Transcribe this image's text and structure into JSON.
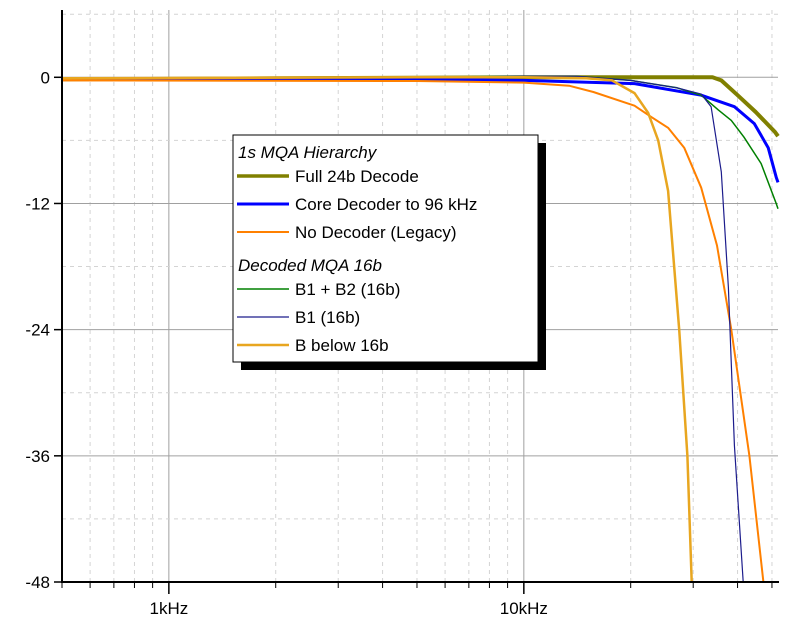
{
  "chart_data": {
    "type": "line",
    "title": "",
    "xlabel": "",
    "ylabel": "",
    "x_scale": "log",
    "xlim": [
      500,
      52000
    ],
    "ylim": [
      -48,
      6.4
    ],
    "grid": true,
    "legend_position": "center",
    "x_tick_labels": [
      {
        "value": 1000,
        "label": "1kHz"
      },
      {
        "value": 10000,
        "label": "10kHz"
      }
    ],
    "y_ticks": [
      0,
      -12,
      -24,
      -36,
      -48
    ],
    "y_tick_labels": [
      "0",
      "-12",
      "-24",
      "-36",
      "-48"
    ],
    "legend": {
      "groups": [
        {
          "heading": "1s MQA Hierarchy",
          "entries": [
            0,
            1,
            2
          ]
        },
        {
          "heading": "Decoded MQA 16b",
          "entries": [
            3,
            4,
            5
          ]
        }
      ]
    },
    "series": [
      {
        "name": "Full 24b Decode",
        "color": "#808000",
        "width": 4,
        "points": [
          [
            500,
            -0.2
          ],
          [
            2000,
            -0.1
          ],
          [
            10000,
            0
          ],
          [
            20000,
            0
          ],
          [
            34000,
            0
          ],
          [
            36000,
            -0.3
          ],
          [
            40000,
            -1.7
          ],
          [
            45000,
            -3.3
          ],
          [
            51000,
            -5.2
          ],
          [
            52000,
            -5.6
          ]
        ]
      },
      {
        "name": "Core Decoder to 96 kHz",
        "color": "#0000ff",
        "width": 3,
        "points": [
          [
            500,
            -0.2
          ],
          [
            5000,
            -0.2
          ],
          [
            10000,
            -0.3
          ],
          [
            20500,
            -0.6
          ],
          [
            31600,
            -1.7
          ],
          [
            39200,
            -2.8
          ],
          [
            44600,
            -4.4
          ],
          [
            48800,
            -6.7
          ],
          [
            51400,
            -9.5
          ],
          [
            52000,
            -10
          ]
        ]
      },
      {
        "name": "No Decoder (Legacy)",
        "color": "#ff8000",
        "width": 2,
        "points": [
          [
            500,
            -0.3
          ],
          [
            5000,
            -0.35
          ],
          [
            10000,
            -0.5
          ],
          [
            13400,
            -0.8
          ],
          [
            15700,
            -1.4
          ],
          [
            20500,
            -2.7
          ],
          [
            22900,
            -3.8
          ],
          [
            25500,
            -4.8
          ],
          [
            28300,
            -6.7
          ],
          [
            31600,
            -10.5
          ],
          [
            35000,
            -16
          ],
          [
            38400,
            -24
          ],
          [
            43200,
            -36
          ],
          [
            47300,
            -48
          ]
        ]
      },
      {
        "name": "B1 + B2 (16b)",
        "color": "#008000",
        "width": 1.5,
        "points": [
          [
            500,
            -0.1
          ],
          [
            5000,
            0
          ],
          [
            10000,
            0.1
          ],
          [
            14000,
            0.1
          ],
          [
            20000,
            -0.3
          ],
          [
            27000,
            -1
          ],
          [
            31600,
            -1.7
          ],
          [
            35300,
            -3.1
          ],
          [
            38400,
            -4.1
          ],
          [
            41700,
            -5.7
          ],
          [
            46600,
            -8.2
          ],
          [
            51400,
            -12
          ],
          [
            52000,
            -12.5
          ]
        ]
      },
      {
        "name": "B1 (16b)",
        "color": "#1c1c8c",
        "width": 1.2,
        "points": [
          [
            500,
            -0.1
          ],
          [
            5000,
            0
          ],
          [
            10000,
            0.1
          ],
          [
            14000,
            0.1
          ],
          [
            20000,
            -0.3
          ],
          [
            27000,
            -1
          ],
          [
            31600,
            -1.6
          ],
          [
            33700,
            -2.8
          ],
          [
            36000,
            -9
          ],
          [
            37700,
            -20
          ],
          [
            39200,
            -35
          ],
          [
            41500,
            -48
          ]
        ]
      },
      {
        "name": "B below 16b",
        "color": "#e8a620",
        "width": 2.5,
        "points": [
          [
            500,
            -0.1
          ],
          [
            5000,
            0
          ],
          [
            10000,
            0
          ],
          [
            15000,
            -0.1
          ],
          [
            17700,
            -0.3
          ],
          [
            20500,
            -1.5
          ],
          [
            22400,
            -3.4
          ],
          [
            23900,
            -6
          ],
          [
            25500,
            -10.8
          ],
          [
            27400,
            -24
          ],
          [
            28900,
            -36
          ],
          [
            29700,
            -48
          ]
        ]
      }
    ]
  }
}
